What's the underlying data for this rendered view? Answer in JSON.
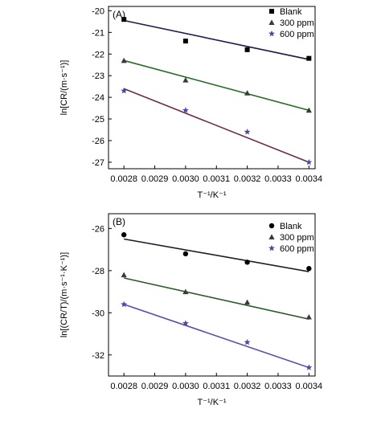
{
  "chart_data": [
    {
      "type": "scatter",
      "panel_label": "(A)",
      "xlabel": "T⁻¹/K⁻¹",
      "ylabel": "ln[CR/(m·s⁻¹)]",
      "xlim": [
        0.00275,
        0.00342
      ],
      "ylim": [
        -27.3,
        -19.8
      ],
      "xticks": [
        "0.0028",
        "0.0029",
        "0.0030",
        "0.0031",
        "0.0032",
        "0.0033",
        "0.0034"
      ],
      "xtick_values": [
        0.0028,
        0.0029,
        0.003,
        0.0031,
        0.0032,
        0.0033,
        0.0034
      ],
      "yticks": [
        "-20",
        "-21",
        "-22",
        "-23",
        "-24",
        "-25",
        "-26",
        "-27"
      ],
      "ytick_values": [
        -20,
        -21,
        -22,
        -23,
        -24,
        -25,
        -26,
        -27
      ],
      "legend_position": "top-right",
      "series": [
        {
          "name": "Blank",
          "marker": "square",
          "line_color": "#1c1c4e",
          "marker_color": "#000000",
          "x": [
            0.0028,
            0.003,
            0.0032,
            0.0034
          ],
          "y": [
            -20.4,
            -21.4,
            -21.8,
            -22.2
          ],
          "fit": [
            [
              0.0028,
              -20.45
            ],
            [
              0.0034,
              -22.25
            ]
          ]
        },
        {
          "name": "300 ppm",
          "marker": "triangle",
          "line_color": "#2a6a2a",
          "marker_color": "#3a3a3a",
          "x": [
            0.0028,
            0.003,
            0.0032,
            0.0034
          ],
          "y": [
            -22.3,
            -23.2,
            -23.8,
            -24.6
          ],
          "fit": [
            [
              0.0028,
              -22.3
            ],
            [
              0.0034,
              -24.6
            ]
          ]
        },
        {
          "name": "600 ppm",
          "marker": "star",
          "line_color": "#6e2a4a",
          "marker_color": "#4a4aa0",
          "x": [
            0.0028,
            0.003,
            0.0032,
            0.0034
          ],
          "y": [
            -23.7,
            -24.6,
            -25.6,
            -27.0
          ],
          "fit": [
            [
              0.0028,
              -23.6
            ],
            [
              0.0034,
              -27.0
            ]
          ]
        }
      ]
    },
    {
      "type": "scatter",
      "panel_label": "(B)",
      "xlabel": "T⁻¹/K⁻¹",
      "ylabel": "ln[(CR/T)/(m·s⁻¹·K⁻¹)]",
      "xlim": [
        0.00275,
        0.00342
      ],
      "ylim": [
        -33.0,
        -25.3
      ],
      "xticks": [
        "0.0028",
        "0.0029",
        "0.0030",
        "0.0031",
        "0.0032",
        "0.0033",
        "0.0034"
      ],
      "xtick_values": [
        0.0028,
        0.0029,
        0.003,
        0.0031,
        0.0032,
        0.0033,
        0.0034
      ],
      "yticks": [
        "-26",
        "-28",
        "-30",
        "-32"
      ],
      "ytick_values": [
        -26,
        -28,
        -30,
        -32
      ],
      "legend_position": "top-right",
      "series": [
        {
          "name": "Blank",
          "marker": "circle",
          "line_color": "#1c1c2a",
          "marker_color": "#000000",
          "x": [
            0.0028,
            0.003,
            0.0032,
            0.0034
          ],
          "y": [
            -26.3,
            -27.2,
            -27.6,
            -27.9
          ],
          "fit": [
            [
              0.0028,
              -26.5
            ],
            [
              0.0034,
              -28.05
            ]
          ]
        },
        {
          "name": "300 ppm",
          "marker": "triangle",
          "line_color": "#2a5a2a",
          "marker_color": "#3a3a3a",
          "x": [
            0.0028,
            0.003,
            0.0032,
            0.0034
          ],
          "y": [
            -28.2,
            -29.0,
            -29.5,
            -30.2
          ],
          "fit": [
            [
              0.0028,
              -28.35
            ],
            [
              0.0034,
              -30.3
            ]
          ]
        },
        {
          "name": "600 ppm",
          "marker": "star",
          "line_color": "#5a4ab0",
          "marker_color": "#4a4aa0",
          "x": [
            0.0028,
            0.003,
            0.0032,
            0.0034
          ],
          "y": [
            -29.6,
            -30.5,
            -31.4,
            -32.6
          ],
          "fit": [
            [
              0.0028,
              -29.6
            ],
            [
              0.0034,
              -32.6
            ]
          ]
        }
      ]
    }
  ]
}
